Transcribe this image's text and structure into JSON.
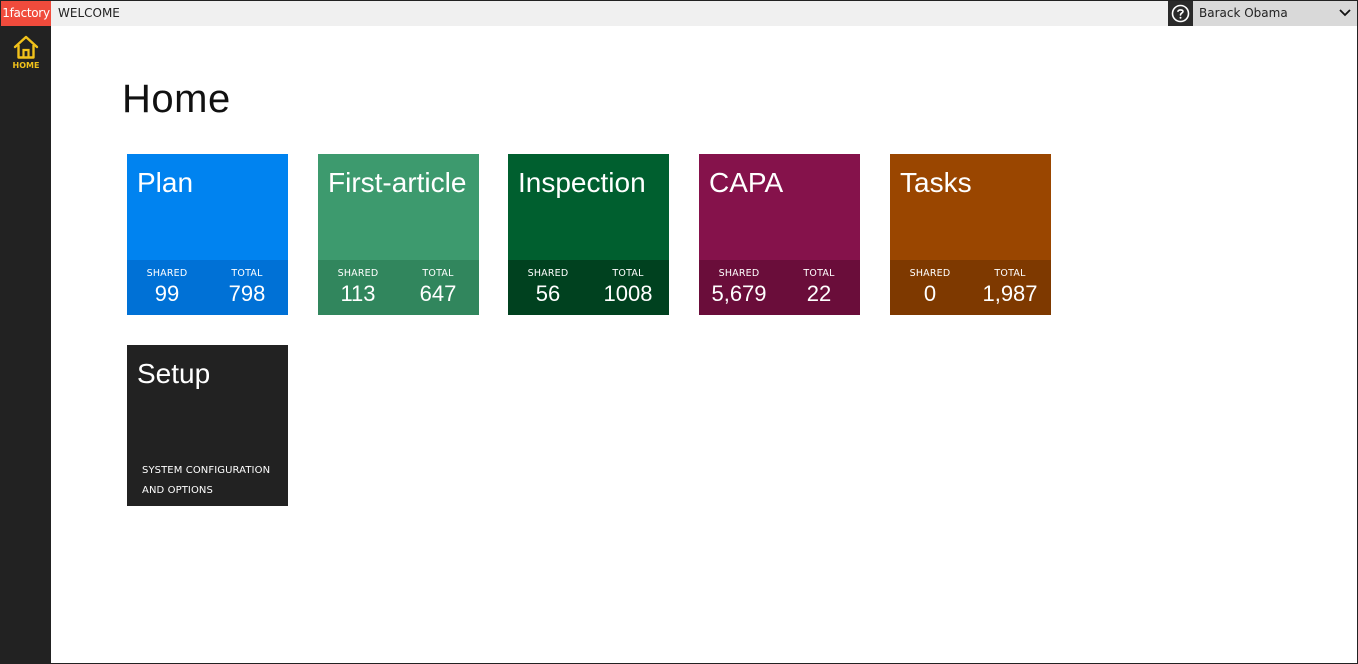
{
  "topbar": {
    "brand": "1factory",
    "welcome": "WELCOME",
    "user_name": "Barack Obama",
    "help_icon": "help-circle-icon"
  },
  "sidebar": {
    "items": [
      {
        "label": "HOME",
        "icon": "home-icon",
        "active_color": "#f2c21b"
      }
    ]
  },
  "main": {
    "title": "Home",
    "tiles": [
      {
        "title": "Plan",
        "color": "#0083f0",
        "stats_color": "#0071d6",
        "shared_label": "SHARED",
        "shared": "99",
        "total_label": "TOTAL",
        "total": "798"
      },
      {
        "title": "First-article",
        "color": "#3d9a6e",
        "stats_color": "#31865d",
        "shared_label": "SHARED",
        "shared": "113",
        "total_label": "TOTAL",
        "total": "647"
      },
      {
        "title": "Inspection",
        "color": "#005f2f",
        "stats_color": "#00411f",
        "shared_label": "SHARED",
        "shared": "56",
        "total_label": "TOTAL",
        "total": "1008"
      },
      {
        "title": "CAPA",
        "color": "#85124b",
        "stats_color": "#6a0d3a",
        "shared_label": "SHARED",
        "shared": "5,679",
        "total_label": "TOTAL",
        "total": "22"
      },
      {
        "title": "Tasks",
        "color": "#9a4600",
        "stats_color": "#7e3900",
        "shared_label": "SHARED",
        "shared": "0",
        "total_label": "TOTAL",
        "total": "1,987"
      }
    ],
    "setup": {
      "title": "Setup",
      "color": "#222222",
      "description_line1": "SYSTEM CONFIGURATION",
      "description_line2": "AND OPTIONS"
    }
  }
}
